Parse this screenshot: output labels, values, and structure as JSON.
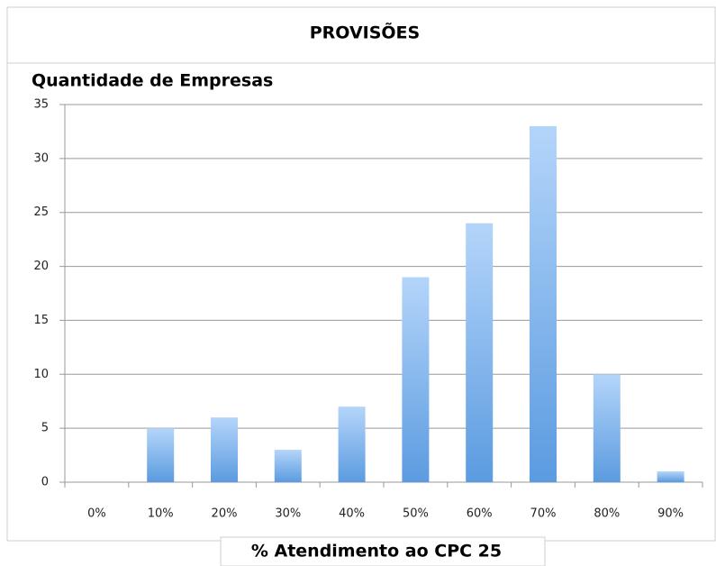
{
  "chart_data": {
    "type": "bar",
    "title": "PROVISÕES",
    "y_label": "Quantidade de Empresas",
    "x_label": "% Atendimento ao CPC 25",
    "categories": [
      "0%",
      "10%",
      "20%",
      "30%",
      "40%",
      "50%",
      "60%",
      "70%",
      "80%",
      "90%"
    ],
    "values": [
      0,
      5,
      6,
      3,
      7,
      19,
      24,
      33,
      10,
      1
    ],
    "color": "#5b9be0",
    "ylim": [
      0,
      35
    ],
    "yticks": [
      0,
      5,
      10,
      15,
      20,
      25,
      30,
      35
    ],
    "grid": true
  }
}
